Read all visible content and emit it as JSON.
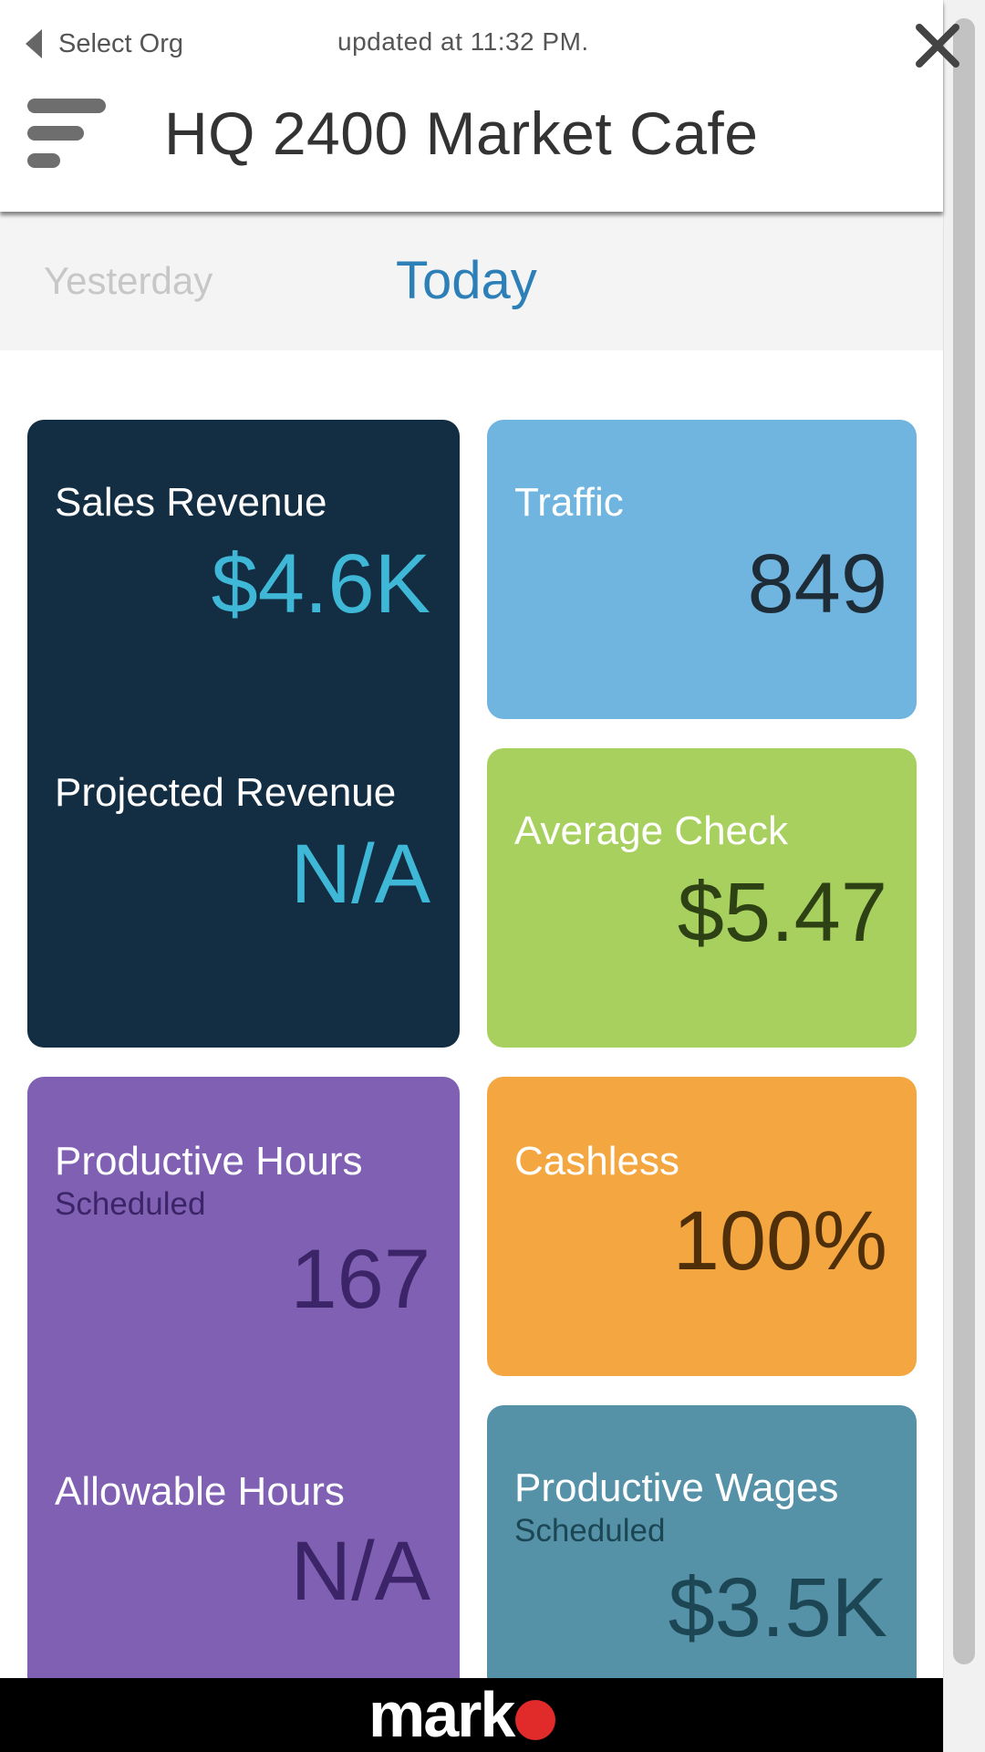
{
  "header": {
    "back_label": "Select Org",
    "updated_text": "updated at 11:32 PM.",
    "title": "HQ 2400 Market Cafe",
    "menu_icon": "menu-icon",
    "close_icon": "close-icon"
  },
  "tabs": [
    {
      "label": "Yesterday",
      "active": false
    },
    {
      "label": "Today",
      "active": true
    }
  ],
  "cards": {
    "sales": {
      "label": "Sales Revenue",
      "value": "$4.6K",
      "label2": "Projected Revenue",
      "value2": "N/A",
      "color": "#132e42",
      "value_color": "#3fb8d8"
    },
    "traffic": {
      "label": "Traffic",
      "value": "849",
      "color": "#70b5e0",
      "value_color": "#1e2c38"
    },
    "avg_check": {
      "label": "Average Check",
      "value": "$5.47",
      "color": "#a8d05f",
      "value_color": "#2e4114"
    },
    "hours": {
      "label": "Productive Hours",
      "sublabel": "Scheduled",
      "value": "167",
      "label2": "Allowable Hours",
      "value2": "N/A",
      "color": "#8060b2",
      "value_color": "#3b2468"
    },
    "cashless": {
      "label": "Cashless",
      "value": "100%",
      "color": "#f4a640",
      "value_color": "#4f2e0a"
    },
    "wages": {
      "label": "Productive Wages",
      "sublabel": "Scheduled",
      "value": "$3.5K",
      "color": "#5592a7",
      "value_color": "#1c4654"
    }
  },
  "footer": {
    "brand": "mark"
  },
  "colors": {
    "active_tab": "#2d7fb8",
    "inactive_tab": "#c7c7c7",
    "brand_dot": "#e12b2b"
  }
}
